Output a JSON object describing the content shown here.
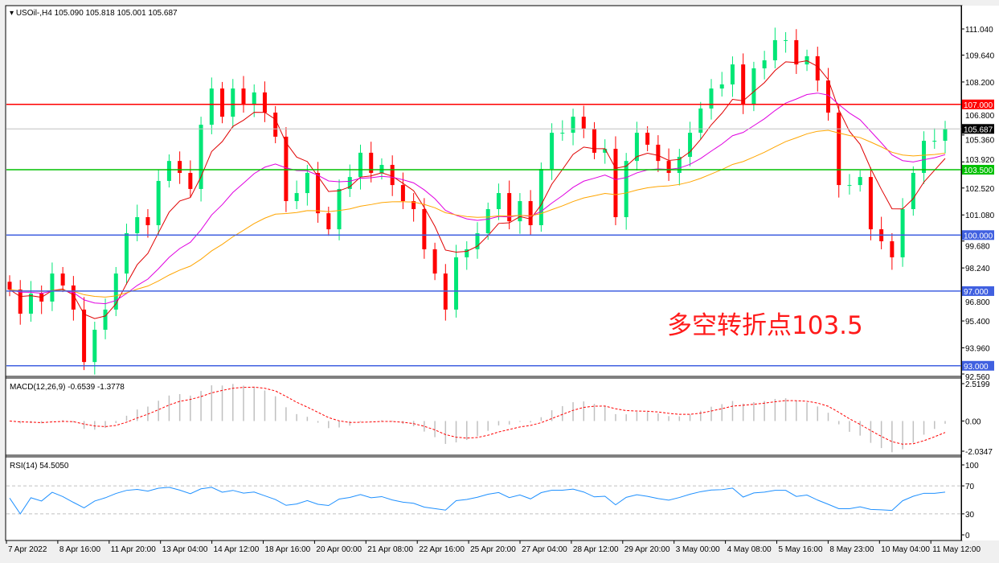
{
  "chart_data": {
    "type": "candlestick",
    "symbol_header": "USOil-,H4",
    "ohlc_header": [
      "105.090",
      "105.818",
      "105.001",
      "105.687"
    ],
    "first_open": 97.5,
    "closes": [
      97.08,
      95.79,
      96.87,
      96.44,
      97.94,
      97.3,
      96.01,
      93.2,
      94.93,
      96.01,
      97.94,
      100.1,
      100.96,
      100.53,
      102.9,
      103.97,
      103.33,
      102.47,
      105.91,
      107.85,
      106.34,
      107.85,
      106.99,
      107.64,
      106.56,
      105.27,
      101.82,
      102.25,
      103.33,
      101.17,
      100.31,
      102.47,
      103.11,
      104.41,
      103.33,
      103.76,
      102.68,
      101.82,
      101.39,
      99.24,
      97.94,
      96.01,
      98.81,
      99.24,
      100.1,
      101.39,
      102.25,
      100.74,
      101.82,
      100.53,
      103.54,
      105.48,
      105.48,
      106.34,
      105.7,
      104.41,
      104.62,
      100.96,
      103.97,
      105.48,
      104.84,
      103.97,
      103.33,
      104.19,
      105.48,
      106.78,
      107.85,
      108.07,
      109.14,
      106.99,
      108.93,
      109.36,
      110.44,
      110.44,
      109.14,
      109.58,
      108.28,
      106.56,
      102.68,
      102.68,
      103.11,
      100.31,
      99.67,
      98.81,
      101.39,
      103.33,
      105.05,
      105.05,
      105.687
    ],
    "ylim": [
      92.56,
      111.04
    ],
    "price_ticks": [
      "111.040",
      "109.640",
      "108.200",
      "106.800",
      "105.360",
      "103.920",
      "102.520",
      "101.080",
      "99.680",
      "98.240",
      "96.800",
      "95.400",
      "93.960",
      "92.560"
    ],
    "levels": [
      {
        "value": 107.0,
        "label": "107.000",
        "color": "#ff0000"
      },
      {
        "value": 103.5,
        "label": "103.500",
        "color": "#00c000"
      },
      {
        "value": 100.0,
        "label": "100.000",
        "color": "#4060e0"
      },
      {
        "value": 97.0,
        "label": "97.000",
        "color": "#4060e0"
      },
      {
        "value": 93.0,
        "label": "93.000",
        "color": "#4060e0"
      }
    ],
    "current_price": {
      "value": 105.687,
      "label": "105.687",
      "color": "#000000"
    },
    "moving_average_colors": [
      "#e00000",
      "#e000e0",
      "#ffa500"
    ],
    "bull_color": "#00e676",
    "bear_color": "#ff0000",
    "annotation": "多空转折点103.5",
    "x_ticks": [
      "7 Apr 2022",
      "8 Apr 16:00",
      "11 Apr 20:00",
      "13 Apr 04:00",
      "14 Apr 12:00",
      "18 Apr 16:00",
      "20 Apr 00:00",
      "21 Apr 08:00",
      "22 Apr 16:00",
      "25 Apr 20:00",
      "27 Apr 04:00",
      "28 Apr 12:00",
      "29 Apr 20:00",
      "3 May 00:00",
      "4 May 08:00",
      "5 May 16:00",
      "8 May 23:00",
      "10 May 04:00",
      "11 May 12:00"
    ],
    "macd": {
      "label": "MACD(12,26,9) -0.6539 -1.3778",
      "ticks": [
        "2.5199",
        "0.00",
        "-2.0347"
      ],
      "ylim": [
        -2.0347,
        2.5199
      ],
      "histogram_color": "#c0c0c0",
      "signal_color": "#ff0000"
    },
    "rsi": {
      "label": "RSI(14) 54.5050",
      "ticks": [
        "100",
        "70",
        "30",
        "0"
      ],
      "levels": [
        70,
        30
      ],
      "ylim": [
        0,
        100
      ],
      "color": "#1e90ff"
    }
  }
}
